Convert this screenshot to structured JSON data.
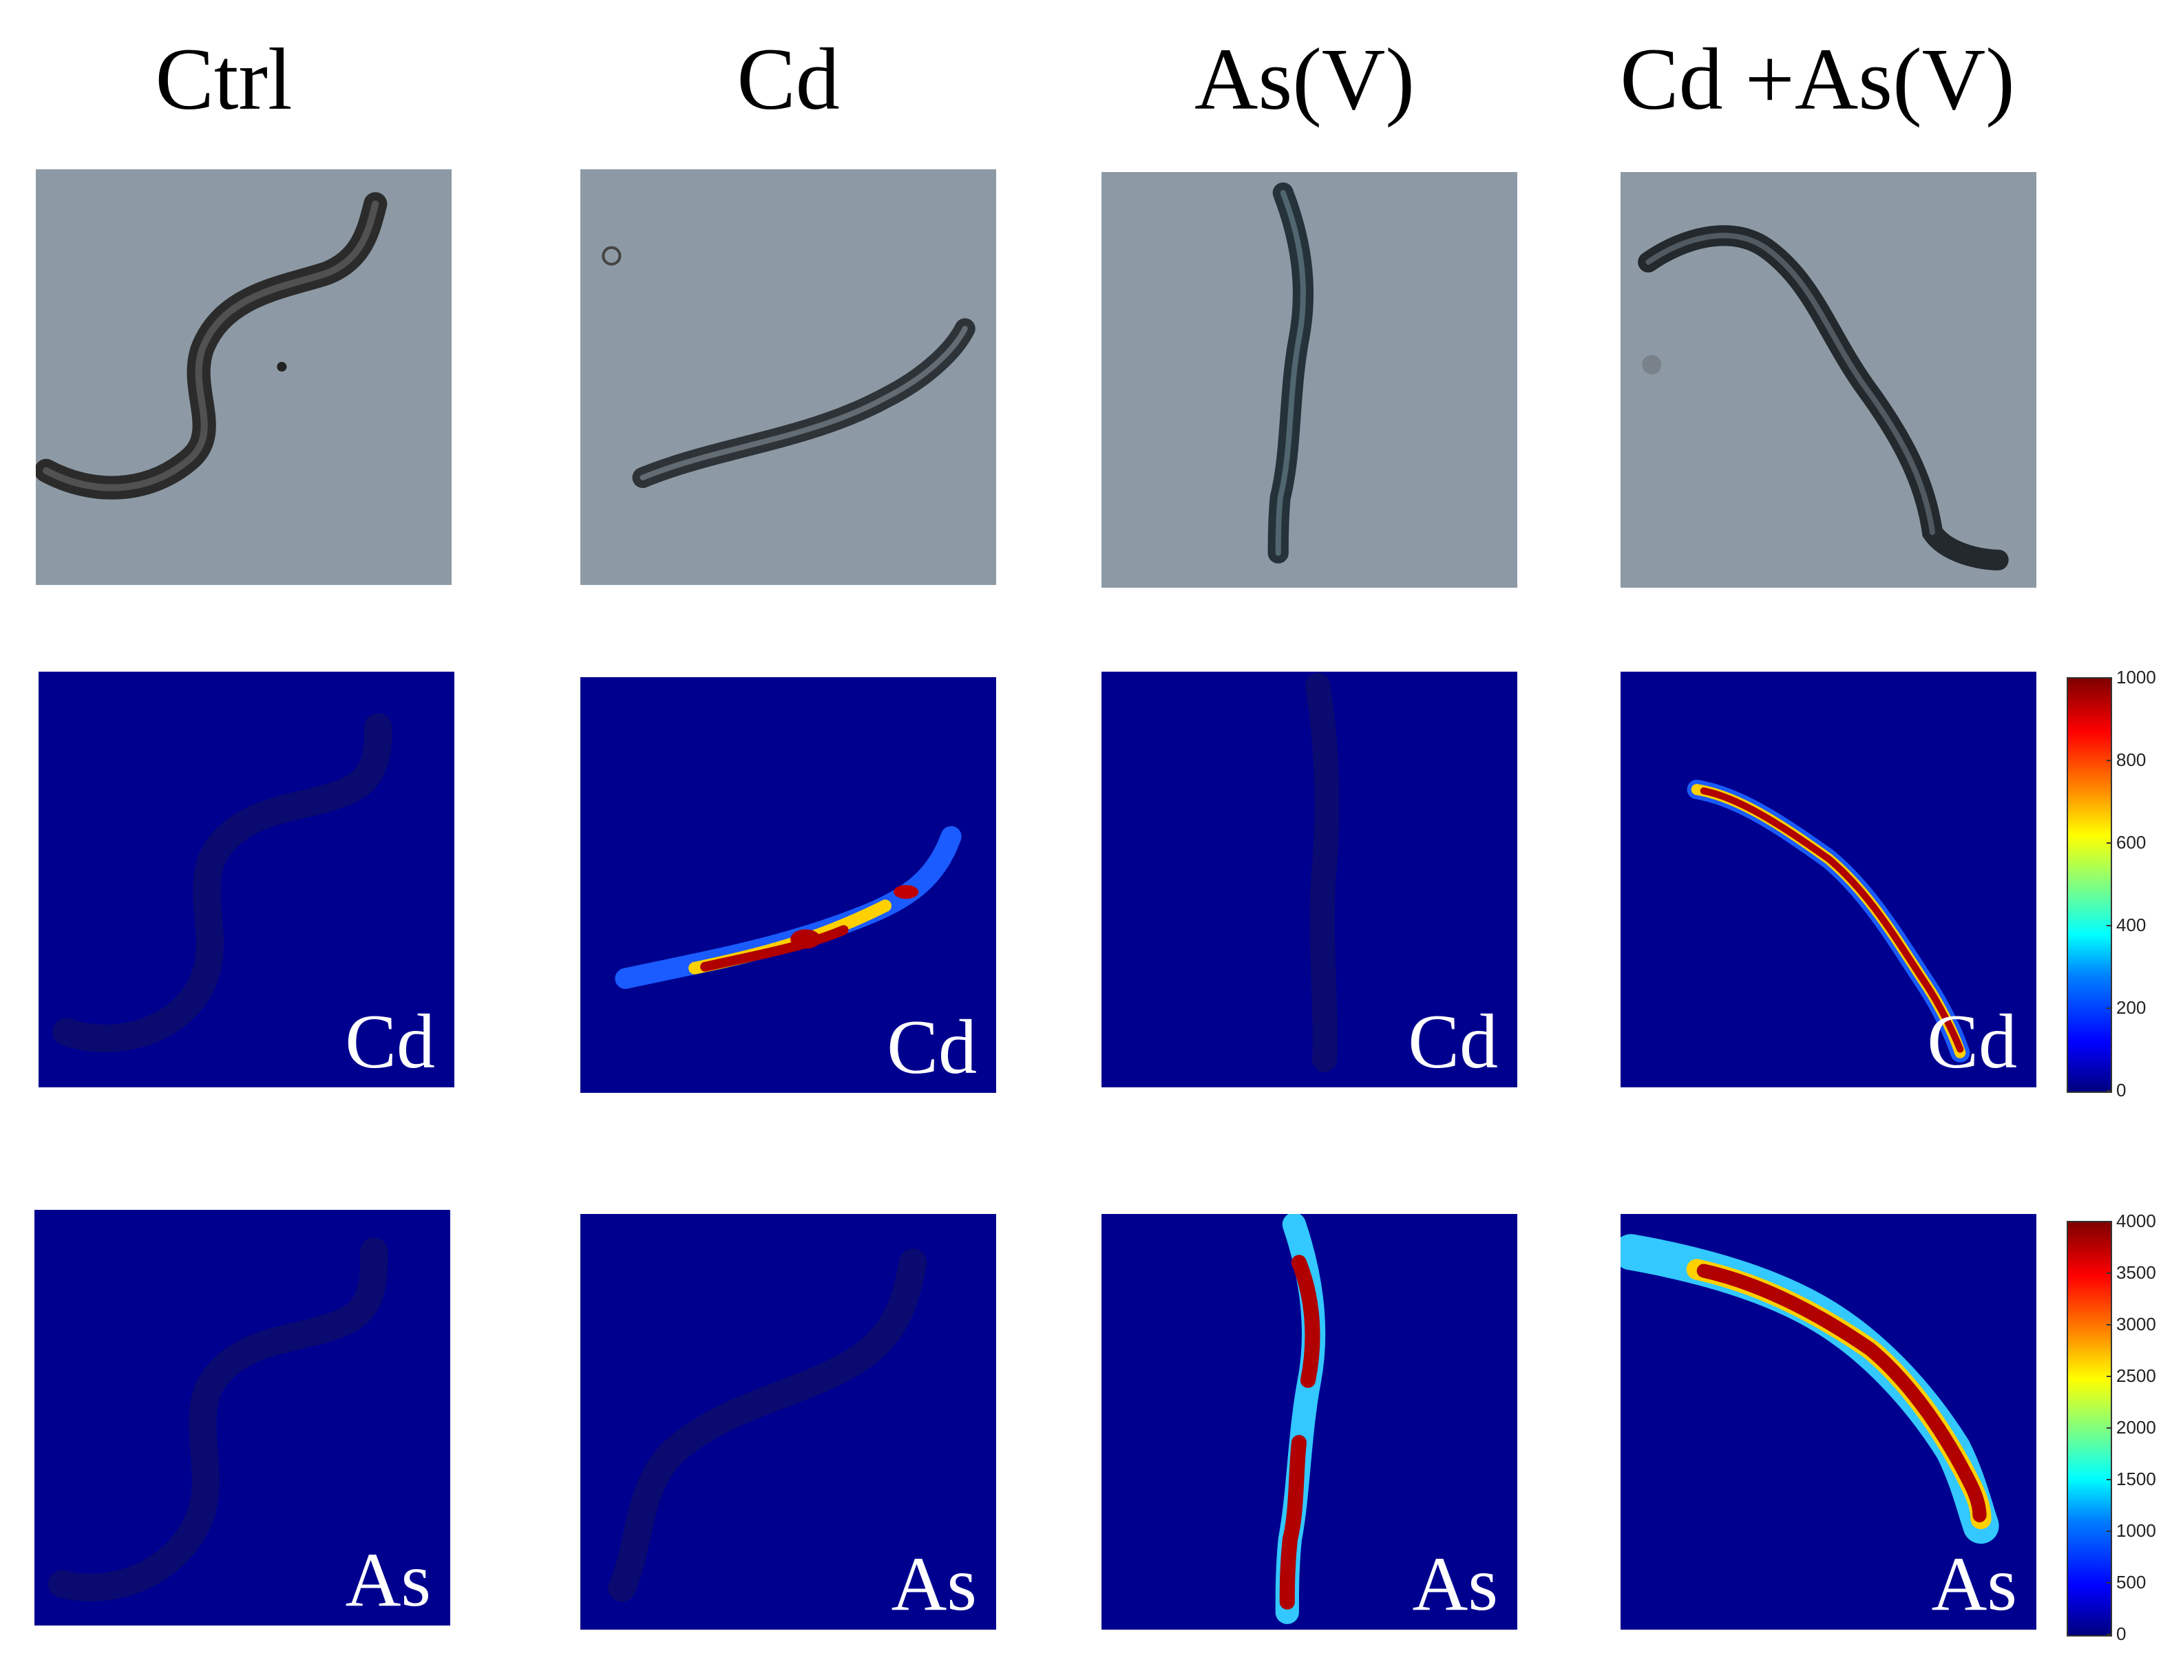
{
  "columns": [
    {
      "title": "Ctrl"
    },
    {
      "title": "Cd"
    },
    {
      "title": "As(V)"
    },
    {
      "title": "Cd +As(V)"
    }
  ],
  "rows": [
    {
      "type": "brightfield"
    },
    {
      "type": "element-map",
      "element_label": "Cd"
    },
    {
      "type": "element-map",
      "element_label": "As"
    }
  ],
  "colorbars": [
    {
      "for_row": "Cd",
      "ticks": [
        "1000",
        "800",
        "600",
        "400",
        "200",
        "0"
      ]
    },
    {
      "for_row": "As",
      "ticks": [
        "4000",
        "3500",
        "3000",
        "2500",
        "2000",
        "1500",
        "1000",
        "500",
        "0"
      ]
    }
  ],
  "colors": {
    "background_map": "#00008f",
    "background_brightfield": "#8d9aa5",
    "worm_dark": "#2a2a2a",
    "hot": "#b00000",
    "warm": "#ffd000",
    "cool": "#33c8ff"
  }
}
